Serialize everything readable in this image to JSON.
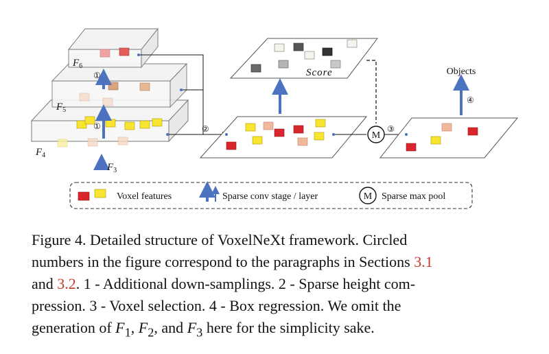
{
  "figure": {
    "level_labels": [
      "F6",
      "F5",
      "F4"
    ],
    "input_label": "F3",
    "score_label": "Score",
    "objects_label": "Objects",
    "max_pool_symbol": "M",
    "step_markers": [
      "①",
      "①",
      "②",
      "③",
      "④"
    ],
    "legend": {
      "voxel_features": "Voxel features",
      "sparse_conv": "Sparse conv stage / layer",
      "max_pool_symbol": "M",
      "sparse_max_pool": "Sparse max pool"
    },
    "colors": {
      "red_voxel": "#d9262c",
      "yellow_voxel": "#f7e531",
      "peach_voxel": "#f2b89c",
      "pink_voxel": "#f0a3a3",
      "arrow_blue": "#4c72c0"
    }
  },
  "caption": {
    "line1": "Figure 4.  Detailed structure of VoxelNeXt framework.  Circled",
    "line2_a": "numbers in the figure correspond to the paragraphs in Sections ",
    "ref1": "3.1",
    "line3_a": "and ",
    "ref2": "3.2",
    "line3_b": ".  1 - Additional down-samplings.  2 - Sparse height com-",
    "line4": "pression.  3 - Voxel selection.  4 - Box regression.  We omit the",
    "line5_a": "generation of ",
    "f1": "F",
    "f1_sub": "1",
    "sep1": ", ",
    "f2": "F",
    "f2_sub": "2",
    "sep2": ", and ",
    "f3": "F",
    "f3_sub": "3",
    "line5_b": " here for the simplicity sake."
  }
}
